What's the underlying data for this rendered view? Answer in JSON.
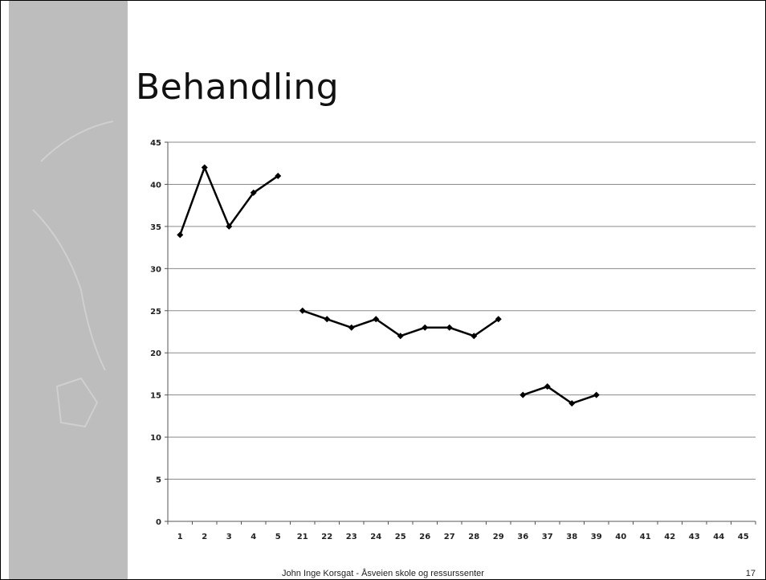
{
  "slide": {
    "title": "Behandling",
    "footer": "John Inge Korsgat - Åsveien skole og ressurssenter",
    "page_number": "17"
  },
  "chart_data": {
    "type": "line",
    "title": "",
    "xlabel": "",
    "ylabel": "",
    "categories": [
      "1",
      "2",
      "3",
      "4",
      "5",
      "21",
      "22",
      "23",
      "24",
      "25",
      "26",
      "27",
      "28",
      "29",
      "36",
      "37",
      "38",
      "39",
      "40",
      "41",
      "42",
      "43",
      "44",
      "45"
    ],
    "ylim": [
      0,
      45
    ],
    "yticks": [
      0,
      5,
      10,
      15,
      20,
      25,
      30,
      35,
      40,
      45
    ],
    "grid": true,
    "legend": "none",
    "segments": [
      {
        "start": 0,
        "values": [
          34,
          42,
          35,
          39,
          41
        ]
      },
      {
        "start": 5,
        "values": [
          25,
          24,
          23,
          24,
          22,
          23,
          23,
          22,
          24
        ]
      },
      {
        "start": 14,
        "values": [
          15,
          16,
          14,
          15
        ]
      }
    ],
    "line_color": "#000000"
  }
}
